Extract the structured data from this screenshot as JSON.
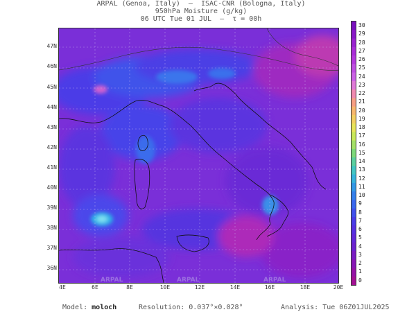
{
  "header": {
    "line1": "ARPAL (Genoa, Italy)  —  ISAC-CNR (Bologna, Italy)",
    "line2": "950hPa Moisture (g/kg)",
    "line3": "06 UTC Tue 01 JUL  —  τ = 00h"
  },
  "map": {
    "lat_labels": [
      "47N",
      "46N",
      "45N",
      "44N",
      "43N",
      "42N",
      "41N",
      "40N",
      "39N",
      "38N",
      "37N",
      "36N"
    ],
    "lon_labels": [
      "4E",
      "6E",
      "8E",
      "10E",
      "12E",
      "14E",
      "16E",
      "18E",
      "20E"
    ],
    "watermark": "ARPAL"
  },
  "colorbar": {
    "labels": [
      "30",
      "29",
      "28",
      "27",
      "26",
      "25",
      "24",
      "23",
      "22",
      "21",
      "20",
      "19",
      "18",
      "17",
      "16",
      "15",
      "14",
      "13",
      "12",
      "11",
      "10",
      "9",
      "8",
      "7",
      "6",
      "5",
      "4",
      "3",
      "2",
      "1",
      "0"
    ],
    "colors": [
      "#7a0fbf",
      "#8a18c8",
      "#9a22d0",
      "#aa2dd8",
      "#b538dd",
      "#c04ee2",
      "#cc62e6",
      "#e07ad8",
      "#f08ab0",
      "#f7a085",
      "#f8b86e",
      "#f4cf62",
      "#e8e45a",
      "#c9e85a",
      "#a4e068",
      "#7ed87a",
      "#5cd0a0",
      "#43c6c4",
      "#37b4dc",
      "#3499e6",
      "#3580ec",
      "#3a67ee",
      "#4150ec",
      "#4a3ce8",
      "#5630e2",
      "#6228da",
      "#6c22d0",
      "#7a1cc4",
      "#8816b6",
      "#9612a6",
      "#a41094"
    ]
  },
  "footer": {
    "model_label": "Model:",
    "model_value": "moloch",
    "res_label": "Resolution:",
    "res_value": "0.037°×0.028°",
    "analysis_label": "Analysis:",
    "analysis_value": "Tue 06Z01JUL2025"
  }
}
